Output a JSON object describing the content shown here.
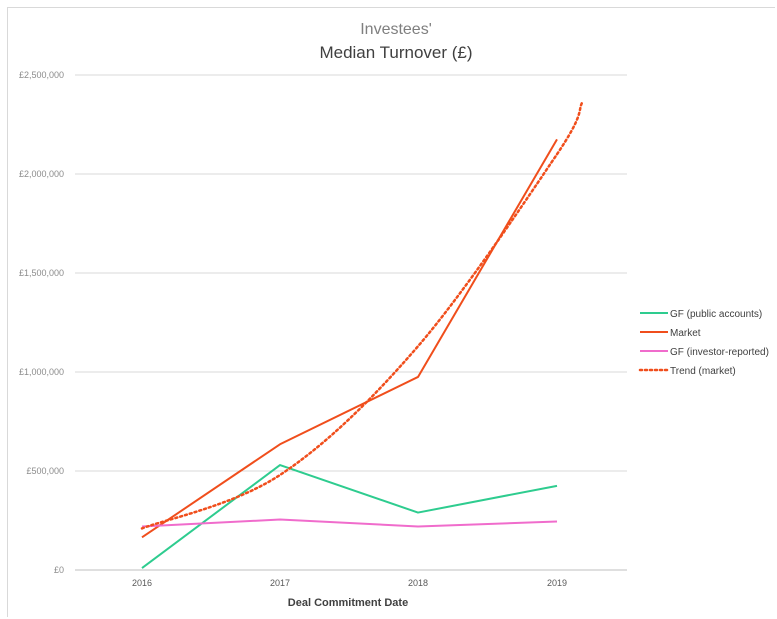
{
  "chart_data": {
    "type": "line",
    "title_line1": "Investees'",
    "title_line2": "Median Turnover (£)",
    "xlabel": "Deal Commitment Date",
    "ylabel": "",
    "categories": [
      "2016",
      "2017",
      "2018",
      "2019"
    ],
    "ylim": [
      0,
      2500000
    ],
    "yticks": [
      0,
      500000,
      1000000,
      1500000,
      2000000,
      2500000
    ],
    "ytick_labels": [
      "£0",
      "£500,000",
      "£1,000,000",
      "£1,500,000",
      "£2,000,000",
      "£2,500,000"
    ],
    "grid": true,
    "legend_position": "right",
    "series": [
      {
        "name": "GF (public accounts)",
        "values": [
          10000,
          530000,
          290000,
          425000
        ],
        "color": "#2ecc8f",
        "style": "solid"
      },
      {
        "name": "Market",
        "values": [
          165000,
          635000,
          975000,
          2175000
        ],
        "color": "#f04e1c",
        "style": "solid"
      },
      {
        "name": "GF (investor-reported)",
        "values": [
          220000,
          255000,
          220000,
          245000
        ],
        "color": "#f06ccc",
        "style": "solid"
      },
      {
        "name": "Trend (market)",
        "values": [
          210000,
          480000,
          1130000,
          2100000
        ],
        "extend_to": 2360000,
        "color": "#f04e1c",
        "style": "dotted"
      }
    ]
  }
}
